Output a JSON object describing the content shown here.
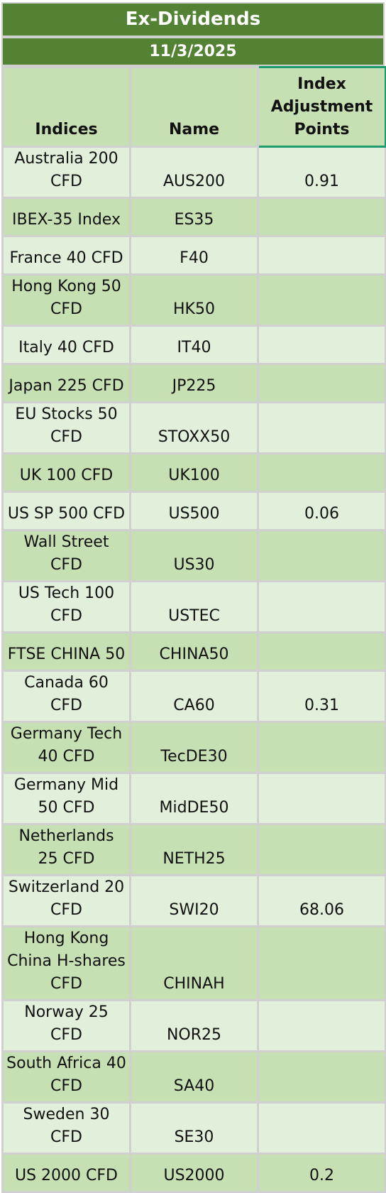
{
  "title": "Ex-Dividends",
  "date": "11/3/2025",
  "columns": {
    "indices": "Indices",
    "name": "Name",
    "points_lines": [
      "Index",
      "Adjustment",
      "Points"
    ]
  },
  "rows": [
    {
      "index": "Australia 200 CFD",
      "name": "AUS200",
      "points": "0.91"
    },
    {
      "index": "IBEX-35 Index",
      "name": "ES35",
      "points": ""
    },
    {
      "index": "France 40 CFD",
      "name": "F40",
      "points": ""
    },
    {
      "index": "Hong Kong 50 CFD",
      "name": "HK50",
      "points": ""
    },
    {
      "index": "Italy 40 CFD",
      "name": "IT40",
      "points": ""
    },
    {
      "index": "Japan 225 CFD",
      "name": "JP225",
      "points": ""
    },
    {
      "index": "EU Stocks 50 CFD",
      "name": "STOXX50",
      "points": ""
    },
    {
      "index": "UK 100 CFD",
      "name": "UK100",
      "points": ""
    },
    {
      "index": "US SP 500 CFD",
      "name": "US500",
      "points": "0.06"
    },
    {
      "index": "Wall Street CFD",
      "name": "US30",
      "points": ""
    },
    {
      "index": "US Tech 100 CFD",
      "name": "USTEC",
      "points": ""
    },
    {
      "index": "FTSE CHINA 50",
      "name": "CHINA50",
      "points": ""
    },
    {
      "index": "Canada 60 CFD",
      "name": "CA60",
      "points": "0.31"
    },
    {
      "index": "Germany Tech 40 CFD",
      "name": "TecDE30",
      "points": ""
    },
    {
      "index": "Germany Mid 50 CFD",
      "name": "MidDE50",
      "points": ""
    },
    {
      "index": "Netherlands 25 CFD",
      "name": "NETH25",
      "points": ""
    },
    {
      "index": "Switzerland 20 CFD",
      "name": "SWI20",
      "points": "68.06"
    },
    {
      "index": "Hong Kong China H-shares CFD",
      "name": "CHINAH",
      "points": ""
    },
    {
      "index": "Norway 25 CFD",
      "name": "NOR25",
      "points": ""
    },
    {
      "index": "South Africa 40 CFD",
      "name": "SA40",
      "points": ""
    },
    {
      "index": "Sweden 30 CFD",
      "name": "SE30",
      "points": ""
    },
    {
      "index": "US 2000 CFD",
      "name": "US2000",
      "points": "0.2"
    }
  ]
}
